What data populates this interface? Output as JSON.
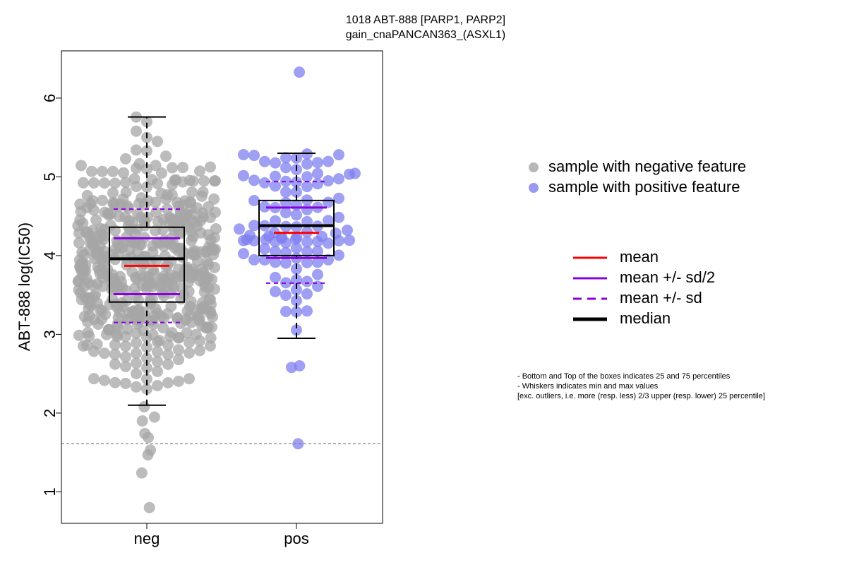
{
  "chart_data": {
    "type": "scatter",
    "title": "1018 ABT-888 [PARP1, PARP2]",
    "subtitle": "gain_cnaPANCAN363_(ASXL1)",
    "ylabel": "ABT-888 log(IC50)",
    "xlabel": "",
    "ylim": [
      0.6,
      6.6
    ],
    "yticks": [
      "1",
      "2",
      "3",
      "4",
      "5",
      "6"
    ],
    "categories": [
      "neg",
      "pos"
    ],
    "reference_line": 1.61,
    "colors": {
      "neg": "#a6a6a6",
      "pos": "#7f7ff0",
      "mean": "#ff0000",
      "sd": "#8b00e0",
      "median": "#000000",
      "refline": "#808080"
    },
    "groups": [
      {
        "name": "neg",
        "n_points": 520,
        "min": 0.8,
        "max": 5.76,
        "whisker_low": 2.1,
        "whisker_high": 5.76,
        "q1": 3.41,
        "median": 3.96,
        "q3": 4.36,
        "mean": 3.87,
        "mean_minus_half_sd": 3.51,
        "mean_plus_half_sd": 4.22,
        "mean_minus_sd": 3.15,
        "mean_plus_sd": 4.59,
        "low_outliers": [
          0.8,
          1.24,
          1.47,
          1.53,
          1.69,
          1.74,
          1.9,
          1.95,
          2.08
        ]
      },
      {
        "name": "pos",
        "n_points": 110,
        "min": 1.61,
        "max": 6.33,
        "whisker_low": 2.95,
        "whisker_high": 5.3,
        "q1": 4.0,
        "median": 4.38,
        "q3": 4.7,
        "mean": 4.29,
        "mean_minus_half_sd": 3.97,
        "mean_plus_half_sd": 4.61,
        "mean_minus_sd": 3.65,
        "mean_plus_sd": 4.94,
        "outliers": [
          1.61,
          2.58,
          2.6,
          6.33
        ]
      }
    ],
    "legend_points": [
      {
        "label": "sample with negative feature",
        "color": "#a6a6a6"
      },
      {
        "label": "sample with positive feature",
        "color": "#7f7ff0"
      }
    ],
    "legend_lines": [
      {
        "label": "mean",
        "color": "#ff0000",
        "dashed": false,
        "width": 3
      },
      {
        "label": "mean +/- sd/2",
        "color": "#8b00e0",
        "dashed": false,
        "width": 3
      },
      {
        "label": "mean +/- sd",
        "color": "#8b00e0",
        "dashed": true,
        "width": 3
      },
      {
        "label": "median",
        "color": "#000000",
        "dashed": false,
        "width": 5
      }
    ],
    "notes": [
      "- Bottom and Top of the boxes indicates 25 and 75 percentiles",
      "- Whiskers indicates min and max values",
      "[exc. outliers, i.e. more (resp. less) 2/3 upper (resp. lower) 25 percentile]"
    ]
  }
}
